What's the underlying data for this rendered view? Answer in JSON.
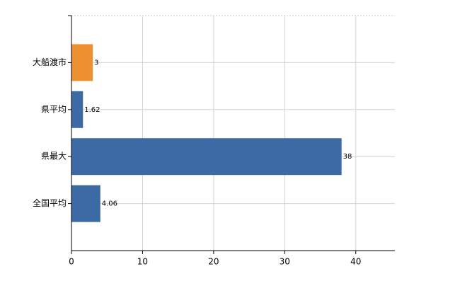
{
  "chart_data": {
    "type": "bar",
    "orientation": "horizontal",
    "categories": [
      "大船渡市",
      "県平均",
      "県最大",
      "全国平均"
    ],
    "values": [
      3,
      1.62,
      38,
      4.06
    ],
    "colors": [
      "#ee8f32",
      "#3b6aa5",
      "#3b6aa5",
      "#3b6aa5"
    ],
    "xlim": [
      0,
      45.5
    ],
    "xticks": [
      0,
      10,
      20,
      30,
      40
    ],
    "grid": true
  }
}
